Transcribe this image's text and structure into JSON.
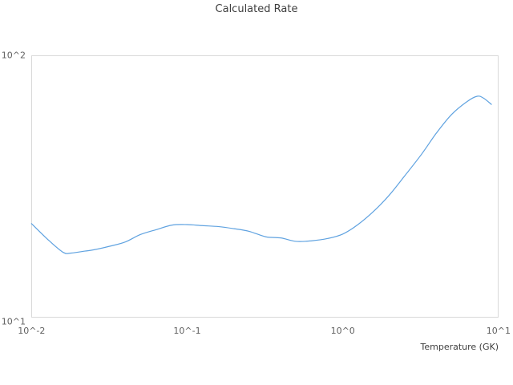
{
  "title": "Calculated Rate",
  "colors": {
    "line": "#5fa2e0",
    "frame": "#d9d9d9",
    "tick_text": "#606060",
    "title_text": "#3e3e3e",
    "background": "#ffffff"
  },
  "chart_data": {
    "type": "line",
    "title": "Calculated Rate",
    "xlabel": "Temperature (GK)",
    "ylabel": "",
    "x_scale": "log",
    "y_scale": "log",
    "xlim": [
      0.01,
      10
    ],
    "ylim": [
      10,
      100
    ],
    "x_ticks": [
      0.01,
      0.1,
      1,
      10
    ],
    "x_tick_labels": [
      "10^-2",
      "10^-1",
      "10^0",
      "10^1"
    ],
    "y_ticks": [
      10,
      100
    ],
    "y_tick_labels": [
      "10^1",
      "10^2"
    ],
    "grid": false,
    "legend": false,
    "series": [
      {
        "name": "Calculated Rate",
        "x": [
          0.01,
          0.013,
          0.016,
          0.018,
          0.022,
          0.025,
          0.032,
          0.04,
          0.05,
          0.063,
          0.08,
          0.1,
          0.125,
          0.16,
          0.2,
          0.25,
          0.32,
          0.4,
          0.5,
          0.63,
          0.8,
          1.0,
          1.25,
          1.6,
          2.0,
          2.5,
          3.2,
          4.0,
          5.0,
          6.3,
          7.3,
          8.0,
          9.0
        ],
        "y": [
          22.8,
          19.6,
          17.7,
          17.6,
          17.9,
          18.1,
          18.7,
          19.4,
          20.7,
          21.6,
          22.5,
          22.6,
          22.4,
          22.2,
          21.8,
          21.3,
          20.3,
          20.1,
          19.5,
          19.6,
          20.0,
          20.8,
          22.6,
          25.6,
          29.4,
          34.7,
          41.9,
          50.6,
          59.5,
          66.7,
          69.8,
          68.7,
          65.0
        ]
      }
    ]
  }
}
